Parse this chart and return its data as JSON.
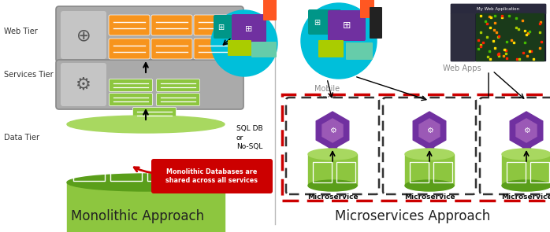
{
  "title_left": "Monolithic Approach",
  "title_right": "Microservices Approach",
  "sql_label": "SQL DB\nor\nNo-SQL",
  "monolithic_note": "Monolithic Databases are\nshared across all services",
  "bg_color": "#ffffff",
  "gray_box": "#aaaaaa",
  "gray_icon_bg": "#c8c8c8",
  "green": "#8DC63F",
  "green_dark": "#5a9e1a",
  "green_light": "#a8d860",
  "orange": "#F7941D",
  "purple": "#7030A0",
  "purple_light": "#9B59B6",
  "red": "#CC0000",
  "cyan": "#00BFDA",
  "divider_color": "#bbbbbb",
  "label_color": "#222222",
  "tier_label_color": "#333333",
  "mobile_label_color": "#888888",
  "ms_label_color": "#111111"
}
